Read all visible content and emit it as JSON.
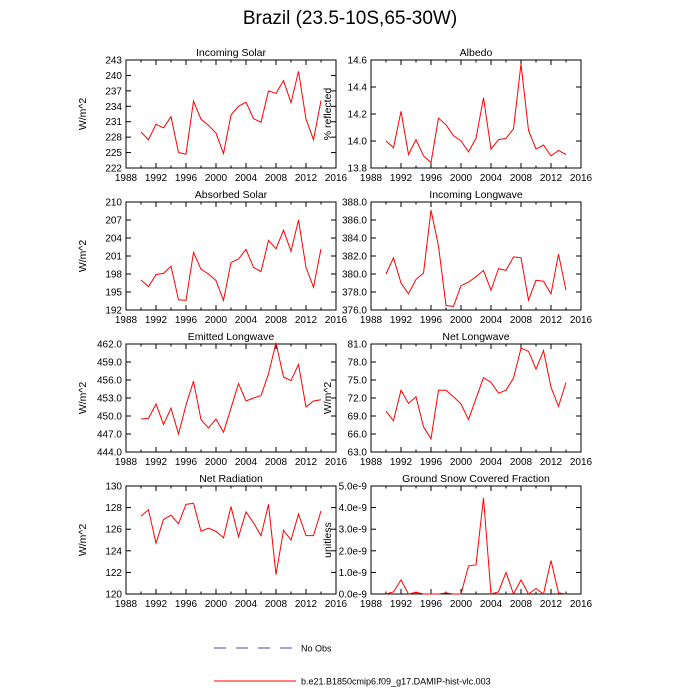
{
  "title": "Brazil (23.5-10S,65-30W)",
  "legend": {
    "obs_label": "No Obs",
    "model_label": "b.e21.B1850cmip6.f09_g17.DAMIP-hist-vlc.003",
    "obs_color": "#4444aa",
    "model_color": "#ff0000"
  },
  "chart_data": [
    {
      "type": "line",
      "title": "Incoming Solar",
      "xlabel": "",
      "ylabel": "W/m^2",
      "xlim": [
        1988,
        2016
      ],
      "ylim": [
        222,
        243
      ],
      "grid": false,
      "xticks": [
        "1988",
        "1992",
        "1996",
        "2000",
        "2004",
        "2008",
        "2012",
        "2016"
      ],
      "yticks": [
        "222",
        "225",
        "228",
        "231",
        "234",
        "237",
        "240",
        "243"
      ],
      "series": [
        {
          "name": "b.e21.B1850cmip6.f09_g17.DAMIP-hist-vlc.003",
          "color": "#ff0000",
          "x": [
            1990,
            1991,
            1992,
            1993,
            1994,
            1995,
            1996,
            1997,
            1998,
            1999,
            2000,
            2001,
            2002,
            2003,
            2004,
            2005,
            2006,
            2007,
            2008,
            2009,
            2010,
            2011,
            2012,
            2013,
            2014
          ],
          "values": [
            229,
            227.5,
            230.5,
            229.8,
            232,
            225,
            224.7,
            235,
            231.5,
            230.3,
            228.8,
            224.8,
            232.3,
            234,
            234.8,
            231.6,
            230.9,
            237,
            236.5,
            239,
            234.7,
            240.8,
            231.5,
            227.5,
            235.1
          ]
        }
      ]
    },
    {
      "type": "line",
      "title": "Albedo",
      "xlabel": "",
      "ylabel": "% reflected",
      "xlim": [
        1988,
        2016
      ],
      "ylim": [
        13.8,
        14.6
      ],
      "grid": false,
      "xticks": [
        "1988",
        "1992",
        "1996",
        "2000",
        "2004",
        "2008",
        "2012",
        "2016"
      ],
      "yticks": [
        "13.8",
        "14.0",
        "14.2",
        "14.4",
        "14.6"
      ],
      "series": [
        {
          "name": "b.e21.B1850cmip6.f09_g17.DAMIP-hist-vlc.003",
          "color": "#ff0000",
          "x": [
            1990,
            1991,
            1992,
            1993,
            1994,
            1995,
            1996,
            1997,
            1998,
            1999,
            2000,
            2001,
            2002,
            2003,
            2004,
            2005,
            2006,
            2007,
            2008,
            2009,
            2010,
            2011,
            2012,
            2013,
            2014
          ],
          "values": [
            14.0,
            13.95,
            14.22,
            13.9,
            14.01,
            13.89,
            13.84,
            14.17,
            14.12,
            14.04,
            14.0,
            13.92,
            14.02,
            14.32,
            13.94,
            14.01,
            14.02,
            14.09,
            14.57,
            14.08,
            13.94,
            13.97,
            13.89,
            13.93,
            13.9
          ]
        }
      ]
    },
    {
      "type": "line",
      "title": "Absorbed Solar",
      "xlabel": "",
      "ylabel": "W/m^2",
      "xlim": [
        1988,
        2016
      ],
      "ylim": [
        192,
        210
      ],
      "grid": false,
      "xticks": [
        "1988",
        "1992",
        "1996",
        "2000",
        "2004",
        "2008",
        "2012",
        "2016"
      ],
      "yticks": [
        "192",
        "195",
        "198",
        "201",
        "204",
        "207",
        "210"
      ],
      "series": [
        {
          "name": "b.e21.B1850cmip6.f09_g17.DAMIP-hist-vlc.003",
          "color": "#ff0000",
          "x": [
            1990,
            1991,
            1992,
            1993,
            1994,
            1995,
            1996,
            1997,
            1998,
            1999,
            2000,
            2001,
            2002,
            2003,
            2004,
            2005,
            2006,
            2007,
            2008,
            2009,
            2010,
            2011,
            2012,
            2013,
            2014
          ],
          "values": [
            197,
            195.9,
            197.9,
            198.1,
            199.3,
            193.7,
            193.6,
            201.6,
            198.8,
            198,
            196.9,
            193.6,
            199.9,
            200.5,
            202.1,
            199.1,
            198.4,
            203.6,
            202.2,
            205.3,
            201.8,
            207,
            199.1,
            195.8,
            202.2
          ]
        }
      ]
    },
    {
      "type": "line",
      "title": "Incoming Longwave",
      "xlabel": "",
      "ylabel": "",
      "xlim": [
        1988,
        2016
      ],
      "ylim": [
        376,
        388
      ],
      "grid": false,
      "xticks": [
        "1988",
        "1992",
        "1996",
        "2000",
        "2004",
        "2008",
        "2012",
        "2016"
      ],
      "yticks": [
        "376.0",
        "378.0",
        "380.0",
        "382.0",
        "384.0",
        "386.0",
        "388.0"
      ],
      "series": [
        {
          "name": "b.e21.B1850cmip6.f09_g17.DAMIP-hist-vlc.003",
          "color": "#ff0000",
          "x": [
            1990,
            1991,
            1992,
            1993,
            1994,
            1995,
            1996,
            1997,
            1998,
            1999,
            2000,
            2001,
            2002,
            2003,
            2004,
            2005,
            2006,
            2007,
            2008,
            2009,
            2010,
            2011,
            2012,
            2013,
            2014
          ],
          "values": [
            380,
            381.8,
            379,
            377.8,
            379.4,
            380.1,
            387.1,
            383.1,
            376.5,
            376.4,
            378.7,
            379.1,
            379.7,
            380.4,
            378.2,
            380.6,
            380.4,
            381.9,
            381.8,
            377.1,
            379.3,
            379.2,
            377.8,
            382.2,
            378.2
          ]
        }
      ]
    },
    {
      "type": "line",
      "title": "Emitted Longwave",
      "xlabel": "",
      "ylabel": "W/m^2",
      "xlim": [
        1988,
        2016
      ],
      "ylim": [
        444,
        462
      ],
      "grid": false,
      "xticks": [
        "1988",
        "1992",
        "1996",
        "2000",
        "2004",
        "2008",
        "2012",
        "2016"
      ],
      "yticks": [
        "444.0",
        "447.0",
        "450.0",
        "453.0",
        "456.0",
        "459.0",
        "462.0"
      ],
      "series": [
        {
          "name": "b.e21.B1850cmip6.f09_g17.DAMIP-hist-vlc.003",
          "color": "#ff0000",
          "x": [
            1990,
            1991,
            1992,
            1993,
            1994,
            1995,
            1996,
            1997,
            1998,
            1999,
            2000,
            2001,
            2002,
            2003,
            2004,
            2005,
            2006,
            2007,
            2008,
            2009,
            2010,
            2011,
            2012,
            2013,
            2014
          ],
          "values": [
            449.5,
            449.6,
            452,
            448.6,
            451.3,
            447,
            451.8,
            455.8,
            449.4,
            448,
            449.5,
            447.3,
            451.3,
            455.4,
            452.5,
            453,
            453.4,
            457,
            462.2,
            456.5,
            455.9,
            458.6,
            451.5,
            452.5,
            452.7
          ]
        }
      ]
    },
    {
      "type": "line",
      "title": "Net Longwave",
      "xlabel": "",
      "ylabel": "W/m^2",
      "xlim": [
        1988,
        2016
      ],
      "ylim": [
        63,
        81
      ],
      "grid": false,
      "xticks": [
        "1988",
        "1992",
        "1996",
        "2000",
        "2004",
        "2008",
        "2012",
        "2016"
      ],
      "yticks": [
        "63.0",
        "66.0",
        "69.0",
        "72.0",
        "75.0",
        "78.0",
        "81.0"
      ],
      "series": [
        {
          "name": "b.e21.B1850cmip6.f09_g17.DAMIP-hist-vlc.003",
          "color": "#ff0000",
          "x": [
            1990,
            1991,
            1992,
            1993,
            1994,
            1995,
            1996,
            1997,
            1998,
            1999,
            2000,
            2001,
            2002,
            2003,
            2004,
            2005,
            2006,
            2007,
            2008,
            2009,
            2010,
            2011,
            2012,
            2013,
            2014
          ],
          "values": [
            69.8,
            68.2,
            73.3,
            71.1,
            72.2,
            67.2,
            65.2,
            73.3,
            73.3,
            72.2,
            71,
            68.4,
            71.9,
            75.4,
            74.6,
            72.8,
            73.3,
            75.3,
            80.3,
            79.8,
            76.8,
            79.9,
            73.8,
            70.6,
            74.6
          ]
        }
      ]
    },
    {
      "type": "line",
      "title": "Net Radiation",
      "xlabel": "",
      "ylabel": "W/m^2",
      "xlim": [
        1988,
        2016
      ],
      "ylim": [
        120,
        130
      ],
      "grid": false,
      "xticks": [
        "1988",
        "1992",
        "1996",
        "2000",
        "2004",
        "2008",
        "2012",
        "2016"
      ],
      "yticks": [
        "120",
        "122",
        "124",
        "126",
        "128",
        "130"
      ],
      "series": [
        {
          "name": "b.e21.B1850cmip6.f09_g17.DAMIP-hist-vlc.003",
          "color": "#ff0000",
          "x": [
            1990,
            1991,
            1992,
            1993,
            1994,
            1995,
            1996,
            1997,
            1998,
            1999,
            2000,
            2001,
            2002,
            2003,
            2004,
            2005,
            2006,
            2007,
            2008,
            2009,
            2010,
            2011,
            2012,
            2013,
            2014
          ],
          "values": [
            127.2,
            127.8,
            124.7,
            126.9,
            127.3,
            126.5,
            128.3,
            128.4,
            125.8,
            126.1,
            125.8,
            125.2,
            128.1,
            125.3,
            127.6,
            126.6,
            125.4,
            128.3,
            121.8,
            125.9,
            125,
            127.4,
            125.4,
            125.4,
            127.7
          ]
        }
      ]
    },
    {
      "type": "line",
      "title": "Ground Snow Covered Fraction",
      "xlabel": "",
      "ylabel": "unitless",
      "xlim": [
        1988,
        2016
      ],
      "ylim": [
        0,
        5e-09
      ],
      "grid": false,
      "xticks": [
        "1988",
        "1992",
        "1996",
        "2000",
        "2004",
        "2008",
        "2012",
        "2016"
      ],
      "yticks": [
        "0.0e-9",
        "1.0e-9",
        "2.0e-9",
        "3.0e-9",
        "4.0e-9",
        "5.0e-9"
      ],
      "series": [
        {
          "name": "b.e21.B1850cmip6.f09_g17.DAMIP-hist-vlc.003",
          "color": "#ff0000",
          "x": [
            1990,
            1991,
            1992,
            1993,
            1994,
            1995,
            1996,
            1997,
            1998,
            1999,
            2000,
            2001,
            2002,
            2003,
            2004,
            2005,
            2006,
            2007,
            2008,
            2009,
            2010,
            2011,
            2012,
            2013,
            2014
          ],
          "values": [
            0,
            1e-10,
            6.5e-10,
            0,
            8e-11,
            0,
            0,
            0,
            5e-11,
            0,
            0,
            1.3e-09,
            1.35e-09,
            4.45e-09,
            0,
            1e-10,
            1e-09,
            0,
            6.5e-10,
            0,
            2.5e-10,
            0,
            1.55e-09,
            5e-11,
            0
          ]
        }
      ]
    }
  ]
}
